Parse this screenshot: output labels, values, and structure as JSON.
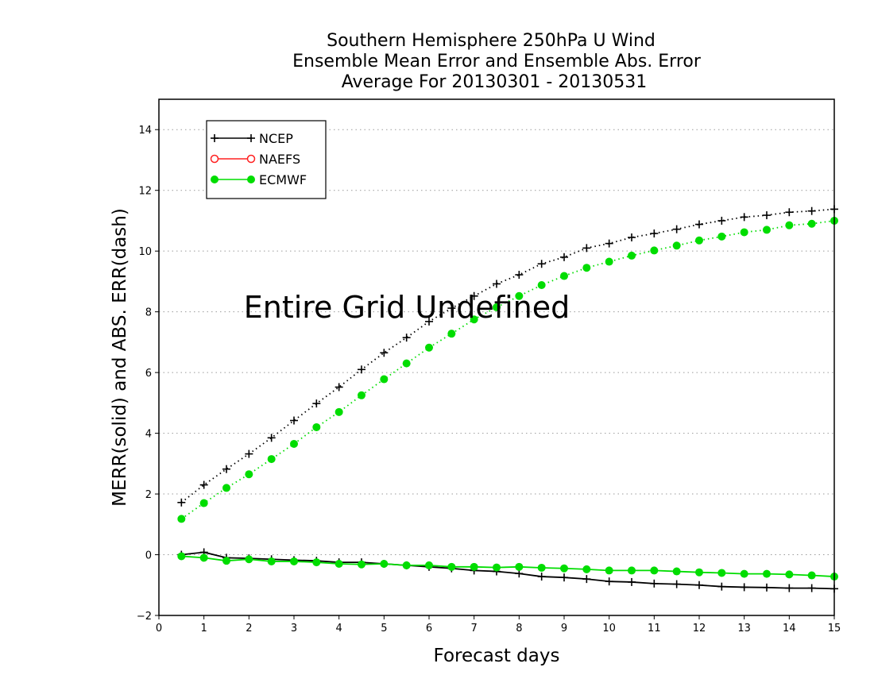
{
  "chart_data": {
    "type": "line",
    "title_lines": [
      "Southern Hemisphere 250hPa U Wind",
      "Ensemble Mean Error and Ensemble Abs. Error",
      "Average For 20130301 - 20130531"
    ],
    "xlabel": "Forecast days",
    "ylabel": "MERR(solid) and ABS. ERR(dash)",
    "xlim": [
      0,
      15
    ],
    "ylim": [
      -2,
      15
    ],
    "xticks": [
      0,
      1,
      2,
      3,
      4,
      5,
      6,
      7,
      8,
      9,
      10,
      11,
      12,
      13,
      14,
      15
    ],
    "yticks": [
      -2,
      0,
      2,
      4,
      6,
      8,
      10,
      12,
      14
    ],
    "grid": "horizontal dotted",
    "legend_position": "top-left",
    "annotation": "Entire Grid Undefined",
    "x": [
      0.5,
      1,
      1.5,
      2,
      2.5,
      3,
      3.5,
      4,
      4.5,
      5,
      5.5,
      6,
      6.5,
      7,
      7.5,
      8,
      8.5,
      9,
      9.5,
      10,
      10.5,
      11,
      11.5,
      12,
      12.5,
      13,
      13.5,
      14,
      14.5,
      15
    ],
    "series": [
      {
        "name": "NCEP",
        "color": "#000000",
        "marker": "plus",
        "merr": [
          0.0,
          0.08,
          -0.1,
          -0.12,
          -0.15,
          -0.18,
          -0.2,
          -0.25,
          -0.25,
          -0.3,
          -0.35,
          -0.4,
          -0.45,
          -0.52,
          -0.55,
          -0.62,
          -0.72,
          -0.75,
          -0.8,
          -0.88,
          -0.9,
          -0.95,
          -0.97,
          -1.0,
          -1.05,
          -1.07,
          -1.08,
          -1.1,
          -1.1,
          -1.12
        ],
        "abs_err": [
          1.72,
          2.3,
          2.82,
          3.32,
          3.85,
          4.42,
          4.98,
          5.52,
          6.1,
          6.65,
          7.15,
          7.68,
          8.12,
          8.52,
          8.92,
          9.22,
          9.58,
          9.8,
          10.1,
          10.25,
          10.45,
          10.58,
          10.72,
          10.88,
          11.0,
          11.12,
          11.18,
          11.28,
          11.32,
          11.38
        ]
      },
      {
        "name": "NAEFS",
        "color": "#ff2020",
        "marker": "open-circle",
        "merr": [],
        "abs_err": []
      },
      {
        "name": "ECMWF",
        "color": "#00dd00",
        "marker": "filled-circle",
        "merr": [
          -0.05,
          -0.1,
          -0.2,
          -0.15,
          -0.22,
          -0.22,
          -0.25,
          -0.3,
          -0.32,
          -0.3,
          -0.35,
          -0.35,
          -0.4,
          -0.4,
          -0.42,
          -0.4,
          -0.43,
          -0.45,
          -0.48,
          -0.52,
          -0.52,
          -0.52,
          -0.55,
          -0.58,
          -0.6,
          -0.63,
          -0.63,
          -0.65,
          -0.68,
          -0.72
        ],
        "abs_err": [
          1.18,
          1.7,
          2.2,
          2.65,
          3.15,
          3.65,
          4.2,
          4.7,
          5.25,
          5.78,
          6.3,
          6.82,
          7.28,
          7.75,
          8.15,
          8.52,
          8.88,
          9.18,
          9.45,
          9.65,
          9.85,
          10.02,
          10.18,
          10.35,
          10.48,
          10.62,
          10.7,
          10.85,
          10.9,
          11.0
        ]
      }
    ]
  }
}
